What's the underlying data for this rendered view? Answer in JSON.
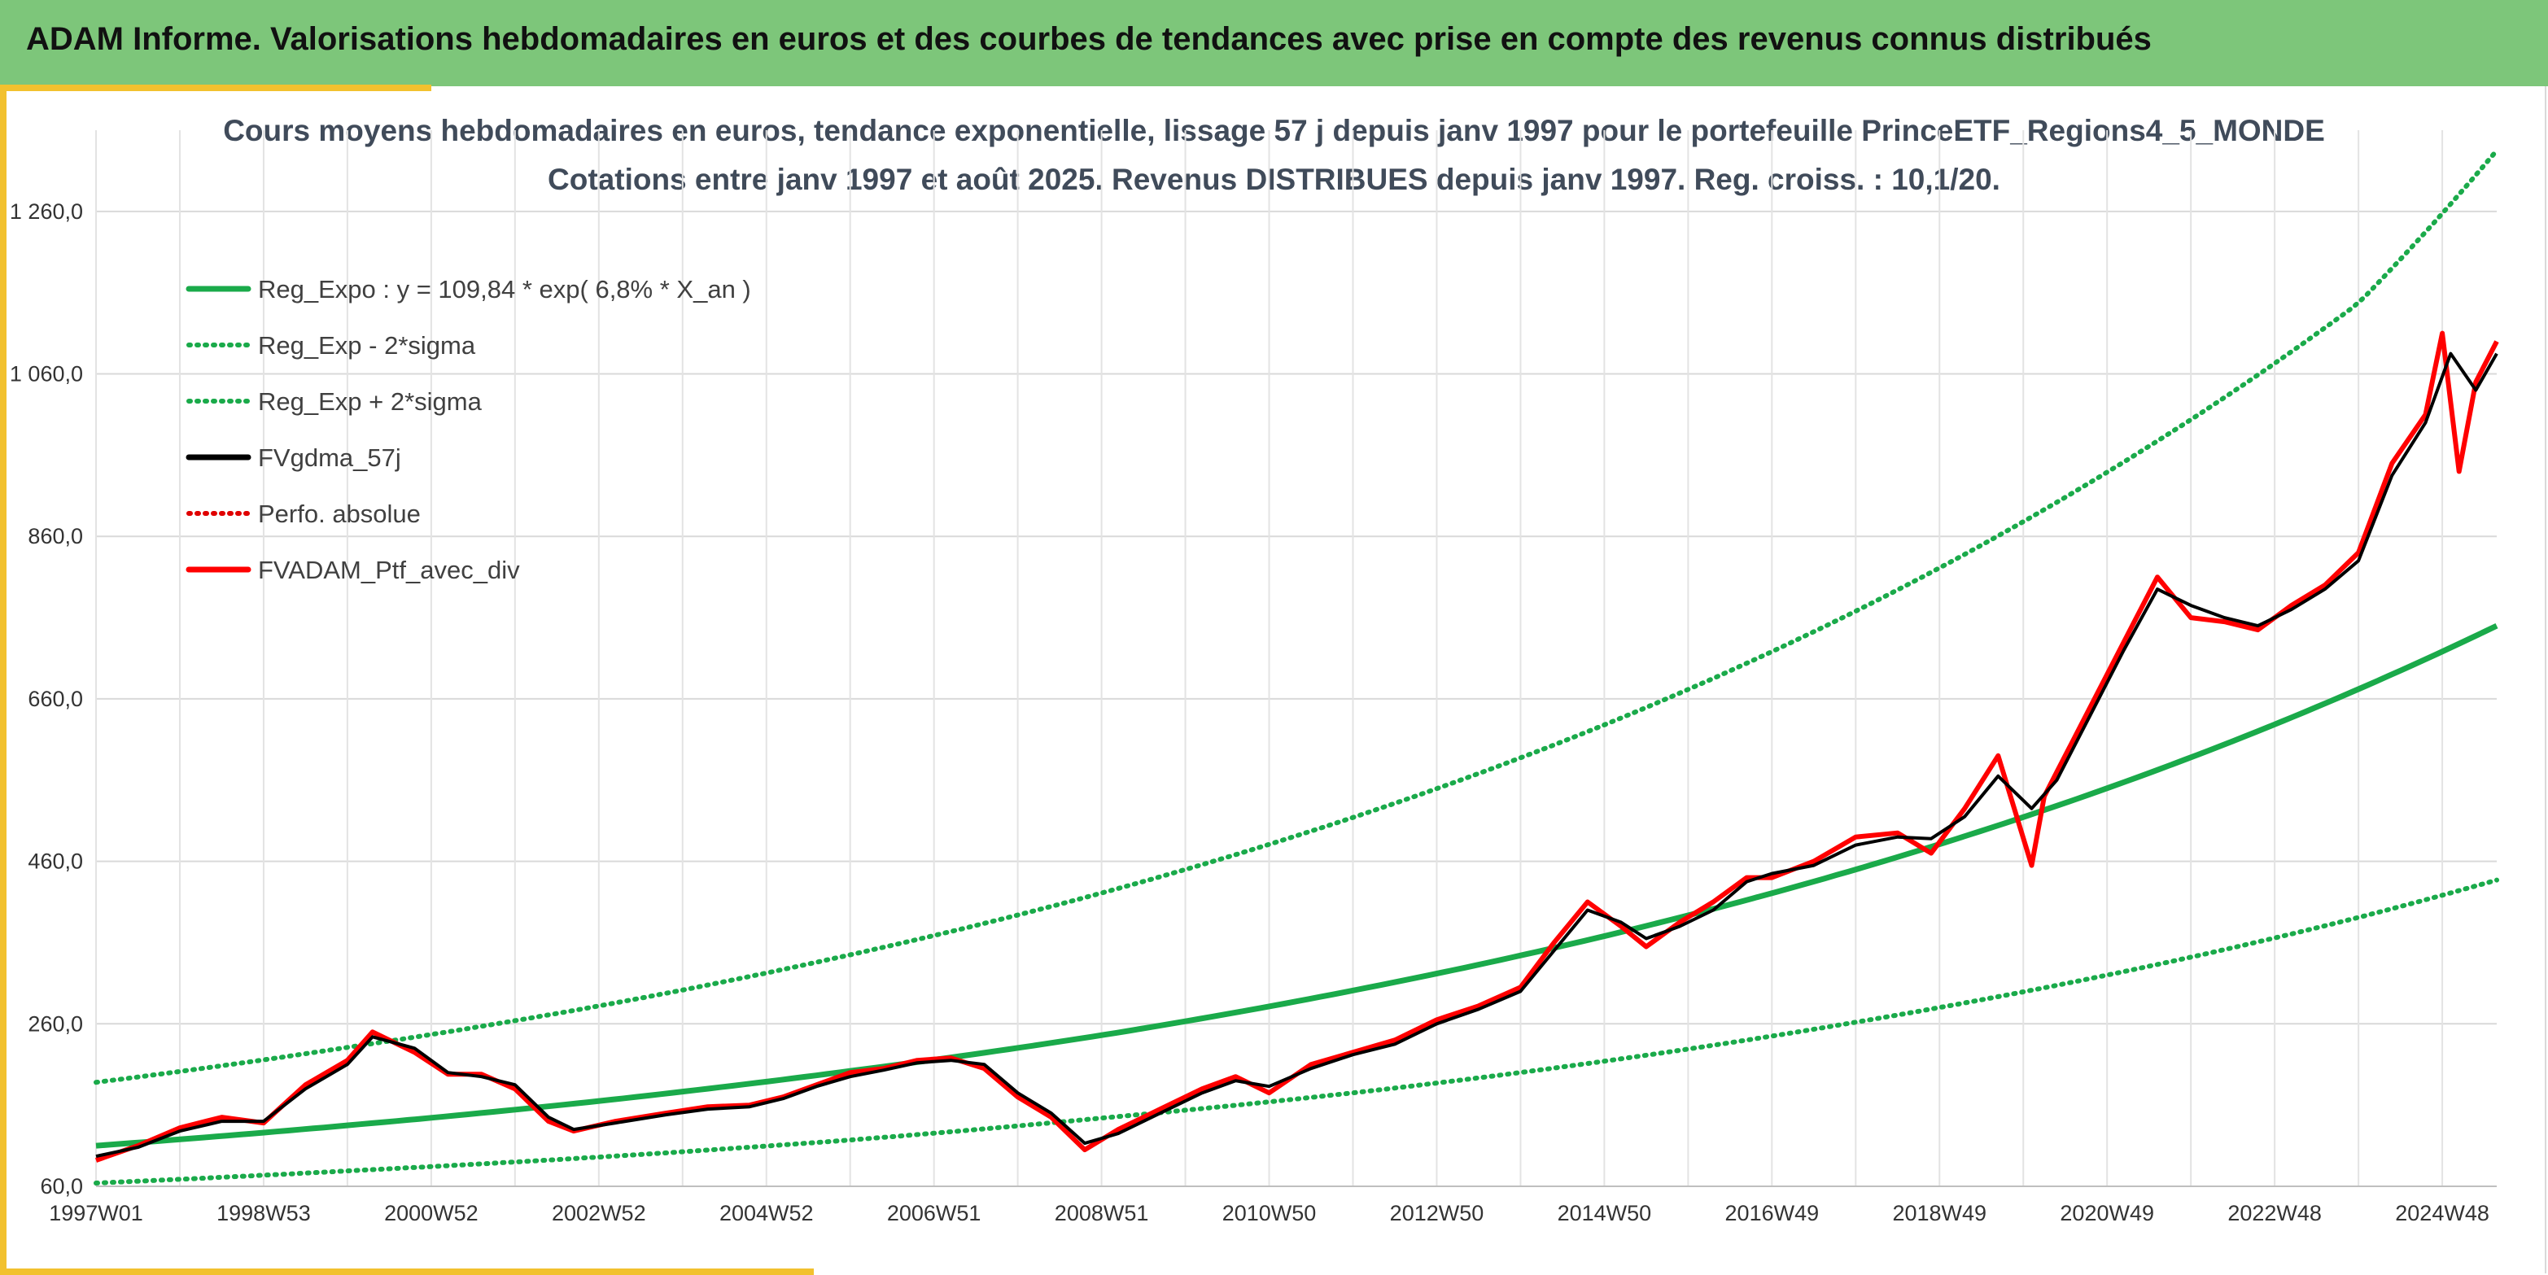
{
  "header": {
    "title": "ADAM Informe. Valorisations hebdomadaires en euros et des courbes de tendances avec prise en compte des revenus connus distribués"
  },
  "chart_data": {
    "type": "line",
    "title": "Cours moyens hebdomadaires en euros, tendance exponentielle, lissage 57 j depuis janv 1997 pour le portefeuille PrinceETF_Regions4_5_MONDE",
    "subtitle": "Cotations entre janv 1997 et août 2025. Revenus DISTRIBUES depuis janv 1997. Reg. croiss. : 10,1/20.",
    "xlabel": "",
    "ylabel": "",
    "ylim": [
      60,
      1360
    ],
    "xlim": [
      1997.0,
      2025.65
    ],
    "y_ticks": [
      "60,0",
      "260,0",
      "460,0",
      "660,0",
      "860,0",
      "1 060,0",
      "1 260,0"
    ],
    "y_tick_values": [
      60,
      260,
      460,
      660,
      860,
      1060,
      1260
    ],
    "x_ticks": [
      "1997W01",
      "1998W53",
      "2000W52",
      "2002W52",
      "2004W52",
      "2006W51",
      "2008W51",
      "2010W50",
      "2012W50",
      "2014W50",
      "2016W49",
      "2018W49",
      "2020W49",
      "2022W48",
      "2024W48"
    ],
    "x_tick_values": [
      1997.0,
      1999.0,
      2001.0,
      2003.0,
      2005.0,
      2007.0,
      2009.0,
      2011.0,
      2013.0,
      2015.0,
      2017.0,
      2019.0,
      2021.0,
      2023.0,
      2025.0
    ],
    "grid": true,
    "legend_position": "top-left",
    "colors": {
      "reg_expo": "#1aaa4a",
      "sigma": "#1aaa4a",
      "fvgdma": "#000000",
      "perfo": "#e00000",
      "ptf": "#ff0000"
    },
    "series": [
      {
        "name": "Reg_Expo : y = 109,84 * exp( 6,8% *  X_an )",
        "style": "solid",
        "x": [
          1997,
          2000,
          2003,
          2006,
          2009,
          2012,
          2015,
          2018,
          2021,
          2024,
          2025.65
        ],
        "values": [
          110,
          135,
          165,
          202,
          246,
          301,
          368,
          450,
          550,
          672,
          750
        ]
      },
      {
        "name": "Reg_Exp - 2*sigma",
        "style": "dotted",
        "x": [
          1997,
          2000,
          2003,
          2006,
          2009,
          2012,
          2015,
          2018,
          2021,
          2024,
          2025.65
        ],
        "values": [
          64,
          79,
          96,
          117,
          144,
          175,
          214,
          262,
          320,
          391,
          437
        ]
      },
      {
        "name": "Reg_Exp + 2*sigma",
        "style": "dotted",
        "x": [
          1997,
          2000,
          2003,
          2006,
          2009,
          2012,
          2015,
          2018,
          2021,
          2024,
          2025.65
        ],
        "values": [
          188,
          231,
          282,
          345,
          421,
          514,
          628,
          768,
          939,
          1147,
          1335
        ]
      },
      {
        "name": "FVgdma_57j",
        "style": "solid",
        "x": [
          1997.0,
          1997.5,
          1998.0,
          1998.5,
          1999.0,
          1999.5,
          2000.0,
          2000.3,
          2000.8,
          2001.2,
          2001.6,
          2002.0,
          2002.4,
          2002.7,
          2003.2,
          2003.8,
          2004.3,
          2004.8,
          2005.2,
          2005.6,
          2006.0,
          2006.4,
          2006.8,
          2007.2,
          2007.6,
          2008.0,
          2008.4,
          2008.8,
          2009.2,
          2009.7,
          2010.2,
          2010.6,
          2011.0,
          2011.5,
          2012.0,
          2012.5,
          2013.0,
          2013.5,
          2014.0,
          2014.4,
          2014.8,
          2015.2,
          2015.5,
          2015.9,
          2016.3,
          2016.7,
          2017.0,
          2017.5,
          2018.0,
          2018.5,
          2018.9,
          2019.3,
          2019.7,
          2020.1,
          2020.4,
          2020.8,
          2021.2,
          2021.6,
          2022.0,
          2022.4,
          2022.8,
          2023.2,
          2023.6,
          2024.0,
          2024.4,
          2024.8,
          2025.1,
          2025.4,
          2025.65
        ],
        "values": [
          97,
          108,
          128,
          140,
          140,
          180,
          210,
          244,
          230,
          200,
          195,
          185,
          145,
          130,
          138,
          148,
          155,
          158,
          168,
          183,
          195,
          203,
          212,
          215,
          210,
          175,
          150,
          113,
          125,
          150,
          175,
          190,
          183,
          205,
          222,
          235,
          260,
          278,
          300,
          350,
          400,
          385,
          365,
          380,
          400,
          435,
          445,
          455,
          480,
          490,
          488,
          515,
          565,
          525,
          560,
          640,
          720,
          795,
          775,
          760,
          750,
          770,
          795,
          830,
          935,
          1000,
          1085,
          1040,
          1085
        ]
      },
      {
        "name": "Perfo. absolue",
        "style": "dotted",
        "x": [],
        "values": []
      },
      {
        "name": "FVADAM_Ptf_avec_div",
        "style": "solid",
        "x": [
          1997.0,
          1997.5,
          1998.0,
          1998.5,
          1999.0,
          1999.5,
          2000.0,
          2000.3,
          2000.8,
          2001.2,
          2001.6,
          2002.0,
          2002.4,
          2002.7,
          2003.2,
          2003.8,
          2004.3,
          2004.8,
          2005.2,
          2005.6,
          2006.0,
          2006.4,
          2006.8,
          2007.2,
          2007.6,
          2008.0,
          2008.4,
          2008.8,
          2009.2,
          2009.7,
          2010.2,
          2010.6,
          2011.0,
          2011.5,
          2012.0,
          2012.5,
          2013.0,
          2013.5,
          2014.0,
          2014.4,
          2014.8,
          2015.2,
          2015.5,
          2015.9,
          2016.3,
          2016.7,
          2017.0,
          2017.5,
          2018.0,
          2018.5,
          2018.9,
          2019.3,
          2019.7,
          2020.1,
          2020.25,
          2020.4,
          2020.8,
          2021.2,
          2021.6,
          2022.0,
          2022.4,
          2022.8,
          2023.2,
          2023.6,
          2024.0,
          2024.4,
          2024.8,
          2025.0,
          2025.2,
          2025.4,
          2025.65
        ],
        "values": [
          92,
          110,
          132,
          145,
          138,
          185,
          215,
          250,
          225,
          198,
          198,
          180,
          140,
          128,
          140,
          150,
          158,
          160,
          170,
          185,
          200,
          205,
          215,
          218,
          205,
          170,
          145,
          105,
          130,
          155,
          180,
          195,
          175,
          210,
          225,
          240,
          265,
          282,
          305,
          360,
          410,
          380,
          355,
          385,
          410,
          440,
          440,
          460,
          490,
          495,
          470,
          525,
          590,
          455,
          540,
          570,
          650,
          730,
          810,
          760,
          755,
          745,
          775,
          800,
          840,
          950,
          1010,
          1110,
          940,
          1050,
          1100
        ]
      }
    ]
  }
}
